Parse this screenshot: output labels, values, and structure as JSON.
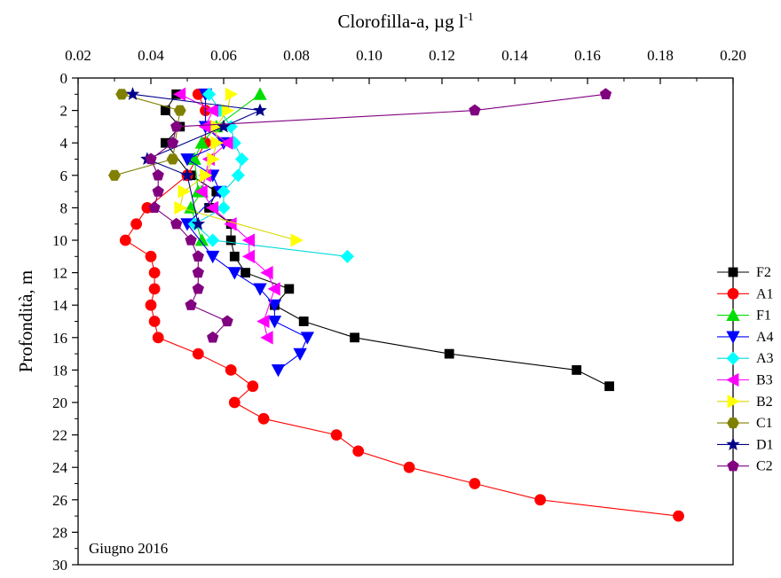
{
  "chart_data": {
    "type": "scatter",
    "xlabel_main": "Clorofilla-a, µg l",
    "xlabel_sup": "-1",
    "ylabel": "Profondità, m",
    "annotation": "Giugno 2016",
    "xlim": [
      0.02,
      0.2
    ],
    "ylim": [
      0,
      30
    ],
    "x_ticks": [
      "0.02",
      "0.04",
      "0.06",
      "0.08",
      "0.10",
      "0.12",
      "0.14",
      "0.16",
      "0.18",
      "0.20"
    ],
    "y_ticks": [
      "0",
      "2",
      "4",
      "6",
      "8",
      "10",
      "12",
      "14",
      "16",
      "18",
      "20",
      "22",
      "24",
      "26",
      "28",
      "30"
    ],
    "x_axis_position": "top",
    "y_inverted": true,
    "grid": false,
    "legend_position": "right",
    "series": [
      {
        "name": "F2",
        "marker": "square",
        "color": "#000000",
        "x": [
          0.047,
          0.044,
          0.048,
          0.044,
          0.051,
          0.058,
          0.056,
          0.062,
          0.062,
          0.063,
          0.066,
          0.078,
          0.074,
          0.082,
          0.096,
          0.122,
          0.157,
          0.166
        ],
        "y": [
          1,
          2,
          3,
          4,
          6,
          7,
          8,
          9,
          10,
          11,
          12,
          13,
          14,
          15,
          16,
          17,
          18,
          19
        ]
      },
      {
        "name": "A1",
        "marker": "circle",
        "color": "#ff0000",
        "x": [
          0.053,
          0.055,
          0.055,
          0.05,
          0.039,
          0.036,
          0.033,
          0.04,
          0.041,
          0.041,
          0.04,
          0.041,
          0.042,
          0.053,
          0.062,
          0.068,
          0.063,
          0.071,
          0.091,
          0.097,
          0.111,
          0.129,
          0.147,
          0.185
        ],
        "y": [
          1,
          2,
          4,
          6,
          8,
          9,
          10,
          11,
          12,
          13,
          14,
          15,
          16,
          17,
          18,
          19,
          20,
          21,
          22,
          23,
          24,
          25,
          26,
          27
        ]
      },
      {
        "name": "F1",
        "marker": "triangle-up",
        "color": "#00dd00",
        "x": [
          0.07,
          0.058,
          0.054,
          0.052,
          0.053,
          0.054,
          0.051,
          0.054
        ],
        "y": [
          1,
          3,
          4,
          5,
          7,
          7,
          8,
          10
        ]
      },
      {
        "name": "A4",
        "marker": "triangle-down",
        "color": "#0000ff",
        "x": [
          0.055,
          0.055,
          0.06,
          0.05,
          0.057,
          0.059,
          0.05,
          0.057,
          0.063,
          0.07,
          0.074,
          0.074,
          0.083,
          0.081,
          0.075
        ],
        "y": [
          1,
          3,
          4,
          5,
          6,
          7,
          9,
          11,
          12,
          13,
          14,
          15,
          16,
          17,
          18
        ]
      },
      {
        "name": "A3",
        "marker": "diamond",
        "color": "#00ffff",
        "x": [
          0.056,
          0.059,
          0.062,
          0.063,
          0.065,
          0.064,
          0.06,
          0.06,
          0.052,
          0.057,
          0.094
        ],
        "y": [
          1,
          2,
          3,
          4,
          5,
          6,
          7,
          8,
          9,
          10,
          11
        ]
      },
      {
        "name": "B3",
        "marker": "triangle-left",
        "color": "#ff00ff",
        "x": [
          0.048,
          0.057,
          0.055,
          0.061,
          0.056,
          0.055,
          0.054,
          0.057,
          0.062,
          0.067,
          0.067,
          0.072,
          0.074,
          0.071,
          0.072
        ],
        "y": [
          1,
          2,
          3,
          4,
          5,
          6,
          7,
          8,
          9,
          10,
          11,
          12,
          13,
          15,
          16
        ]
      },
      {
        "name": "B2",
        "marker": "triangle-right",
        "color": "#ffff00",
        "x": [
          0.062,
          0.061,
          0.058,
          0.058,
          0.057,
          0.055,
          0.049,
          0.048,
          0.08
        ],
        "y": [
          1,
          2,
          3,
          4,
          5,
          6,
          7,
          8,
          10
        ]
      },
      {
        "name": "C1",
        "marker": "hexagon",
        "color": "#808000",
        "x": [
          0.032,
          0.048,
          0.046,
          0.03
        ],
        "y": [
          1,
          2,
          5,
          6
        ]
      },
      {
        "name": "D1",
        "marker": "star",
        "color": "#00008b",
        "x": [
          0.035,
          0.07,
          0.06,
          0.039,
          0.05,
          0.053
        ],
        "y": [
          1,
          2,
          3,
          5,
          6,
          9
        ]
      },
      {
        "name": "C2",
        "marker": "pentagon",
        "color": "#800080",
        "x": [
          0.165,
          0.129,
          0.047,
          0.046,
          0.04,
          0.042,
          0.042,
          0.041,
          0.047,
          0.051,
          0.053,
          0.053,
          0.053,
          0.051,
          0.061,
          0.057
        ],
        "y": [
          1,
          2,
          3,
          4,
          5,
          6,
          7,
          8,
          9,
          10,
          11,
          12,
          13,
          14,
          15,
          16
        ]
      }
    ]
  }
}
